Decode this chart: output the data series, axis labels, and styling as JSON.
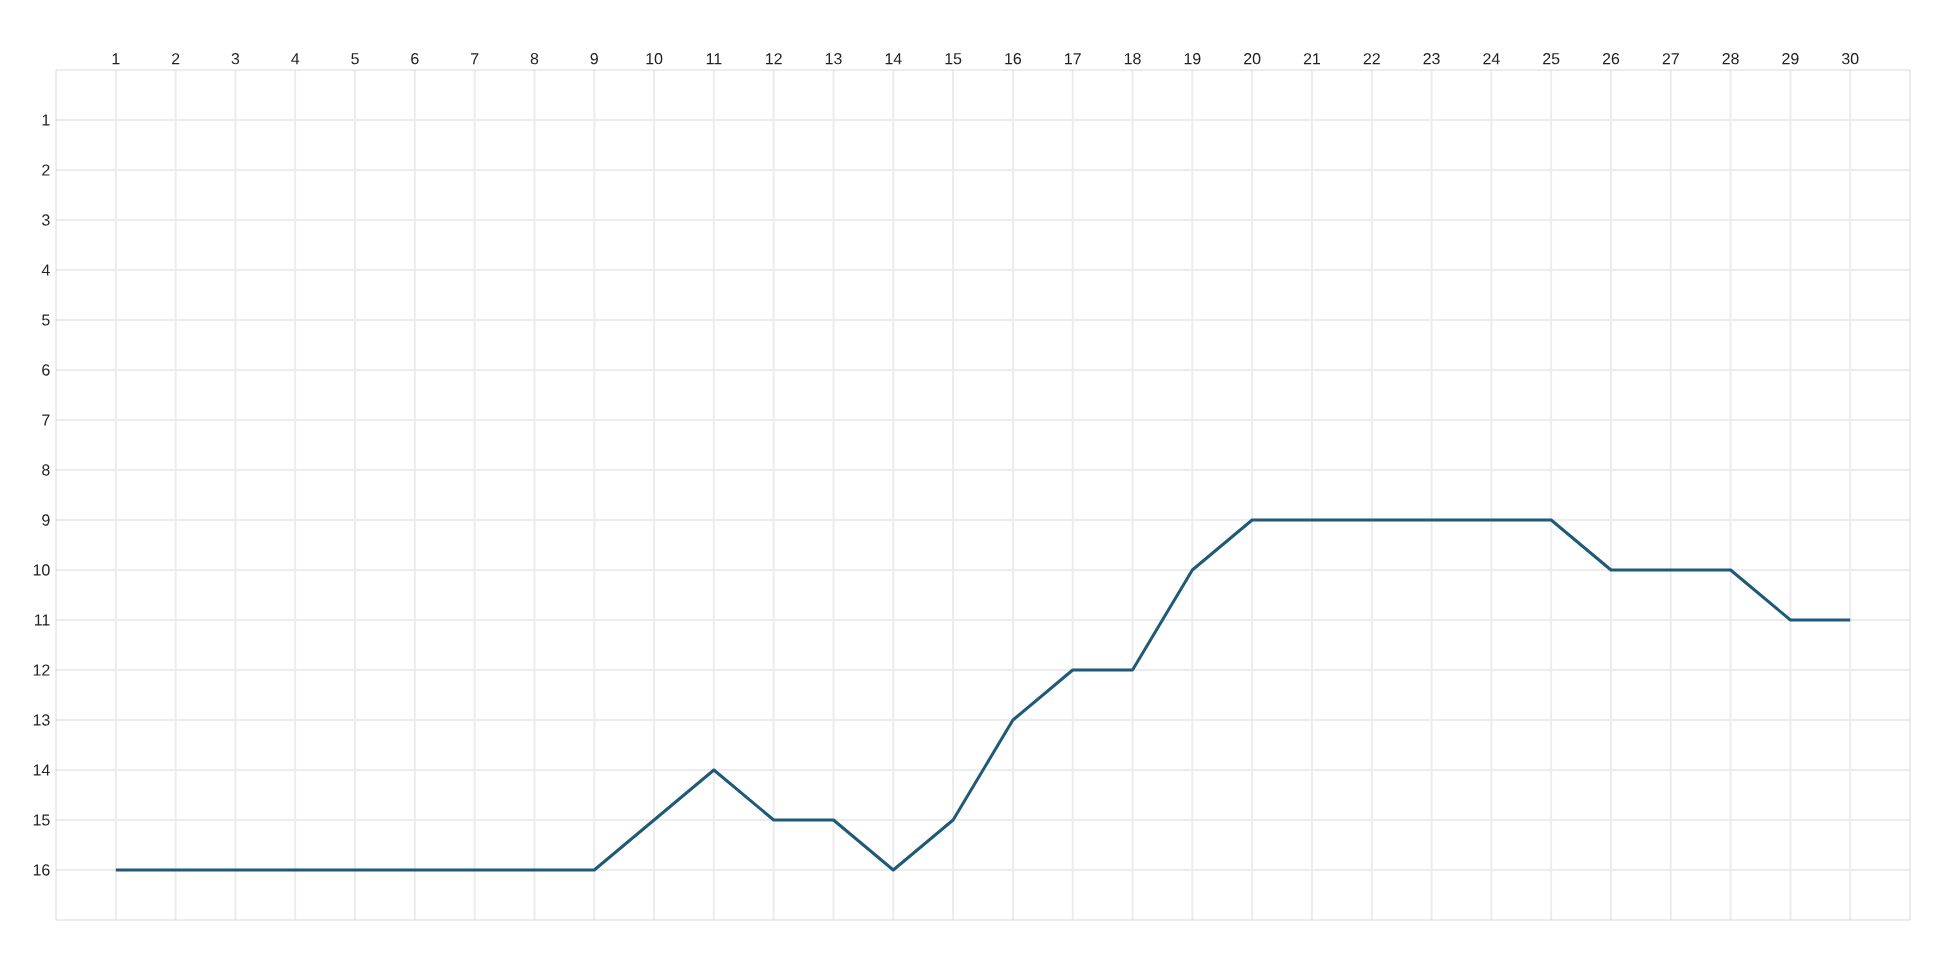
{
  "chart_data": {
    "type": "line",
    "x": [
      1,
      2,
      3,
      4,
      5,
      6,
      7,
      8,
      9,
      10,
      11,
      12,
      13,
      14,
      15,
      16,
      17,
      18,
      19,
      20,
      21,
      22,
      23,
      24,
      25,
      26,
      27,
      28,
      29,
      30
    ],
    "series": [
      {
        "color": "#1f5a78",
        "values": [
          16,
          16,
          16,
          16,
          16,
          16,
          16,
          16,
          16,
          15,
          14,
          15,
          15,
          16,
          15,
          13,
          12,
          12,
          10,
          9,
          9,
          9,
          9,
          9,
          9,
          10,
          10,
          10,
          11,
          11
        ]
      }
    ],
    "xlim": [
      0,
      31
    ],
    "ylim": [
      17,
      0
    ],
    "xticks": [
      1,
      2,
      3,
      4,
      5,
      6,
      7,
      8,
      9,
      10,
      11,
      12,
      13,
      14,
      15,
      16,
      17,
      18,
      19,
      20,
      21,
      22,
      23,
      24,
      25,
      26,
      27,
      28,
      29,
      30
    ],
    "yticks": [
      1,
      2,
      3,
      4,
      5,
      6,
      7,
      8,
      9,
      10,
      11,
      12,
      13,
      14,
      15,
      16
    ],
    "grid": true,
    "marker": "none",
    "line_style": "solid"
  }
}
